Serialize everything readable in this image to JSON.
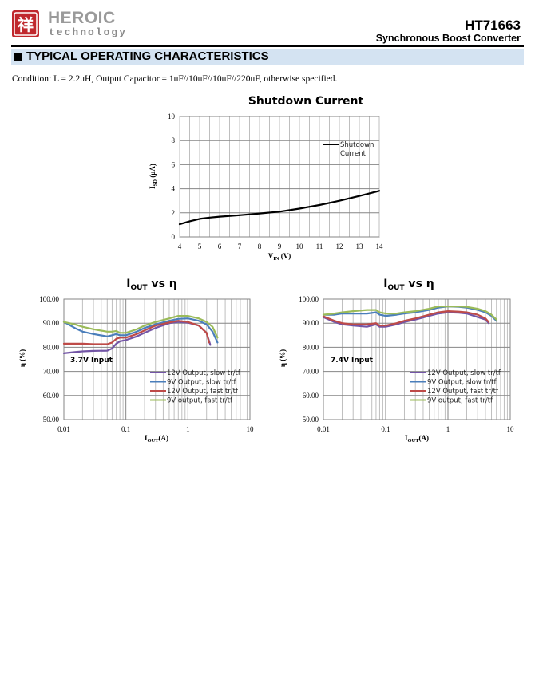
{
  "header": {
    "logo_glyph": "祥",
    "brand_name": "HEROIC",
    "brand_tagline": "technology",
    "part_number": "HT71663",
    "part_description": "Synchronous Boost Converter"
  },
  "section": {
    "title": "TYPICAL OPERATING CHARACTERISTICS"
  },
  "condition": "Condition: L = 2.2uH, Output Capacitor = 1uF//10uF//10uF//220uF, otherwise specified.",
  "colors": {
    "header_band": "#d4e3f2",
    "purple": "#7355a6",
    "blue": "#4a7ebb",
    "red": "#be4b48",
    "green": "#9bbb59"
  },
  "chart_data": [
    {
      "type": "line",
      "title": "Shutdown Current",
      "xlabel_main": "V",
      "xlabel_sub": "IN",
      "xlabel_unit": " (V)",
      "ylabel_main": "I",
      "ylabel_sub": "SD",
      "ylabel_unit": " (μA)",
      "xlim": [
        4,
        14
      ],
      "ylim": [
        0,
        10
      ],
      "xticks": [
        "4",
        "5",
        "6",
        "7",
        "8",
        "9",
        "10",
        "11",
        "12",
        "13",
        "14"
      ],
      "yticks": [
        "0",
        "2",
        "4",
        "6",
        "8",
        "10"
      ],
      "legend_position": "top-right",
      "series": [
        {
          "name": "Shutdown Current",
          "color": "#000000",
          "x": [
            4,
            4.5,
            5,
            5.5,
            6,
            7,
            8,
            9,
            10,
            11,
            12,
            13,
            14
          ],
          "y": [
            1.05,
            1.3,
            1.5,
            1.6,
            1.68,
            1.8,
            1.95,
            2.1,
            2.35,
            2.65,
            3.0,
            3.4,
            3.82
          ]
        }
      ]
    },
    {
      "type": "line",
      "title_main": "I",
      "title_sub": "OUT",
      "title_rest": " vs η",
      "annotation": "3.7V Input",
      "xlabel_main": "I",
      "xlabel_sub": "OUT",
      "xlabel_unit": "(A)",
      "ylabel": "η (%)",
      "xscale": "log",
      "xlim": [
        0.01,
        10
      ],
      "ylim": [
        50,
        100
      ],
      "xticks": [
        "0.01",
        "0.1",
        "1",
        "10"
      ],
      "yticks": [
        "50.00",
        "60.00",
        "70.00",
        "80.00",
        "90.00",
        "100.00"
      ],
      "legend_position": "bottom-right",
      "series": [
        {
          "name": "12V Output, slow tr/tf",
          "color": "#7355a6",
          "x": [
            0.01,
            0.015,
            0.02,
            0.03,
            0.05,
            0.06,
            0.07,
            0.08,
            0.1,
            0.15,
            0.2,
            0.3,
            0.5,
            0.7,
            1,
            1.5,
            2,
            2.3
          ],
          "y": [
            77.5,
            78.0,
            78.3,
            78.5,
            78.6,
            79.5,
            81.5,
            82.5,
            83.0,
            84.5,
            86.0,
            88.0,
            90.0,
            90.5,
            90.2,
            89.0,
            86.0,
            81.0
          ]
        },
        {
          "name": "9V Output, slow tr/tf",
          "color": "#4a7ebb",
          "x": [
            0.01,
            0.015,
            0.02,
            0.03,
            0.05,
            0.06,
            0.07,
            0.08,
            0.1,
            0.15,
            0.2,
            0.3,
            0.5,
            0.7,
            1,
            1.5,
            2,
            2.5,
            3
          ],
          "y": [
            90.5,
            88.0,
            86.5,
            85.5,
            84.5,
            85.0,
            85.5,
            85.0,
            85.0,
            86.5,
            88.0,
            89.5,
            91.0,
            91.8,
            92.0,
            91.0,
            89.5,
            86.5,
            82.0
          ]
        },
        {
          "name": "12V Output, fast tr/tf",
          "color": "#be4b48",
          "x": [
            0.01,
            0.015,
            0.02,
            0.03,
            0.05,
            0.06,
            0.07,
            0.08,
            0.1,
            0.15,
            0.2,
            0.3,
            0.5,
            0.7,
            1,
            1.5,
            2,
            2.2
          ],
          "y": [
            81.5,
            81.5,
            81.5,
            81.3,
            81.3,
            82.0,
            83.5,
            84.0,
            84.0,
            85.5,
            87.0,
            89.0,
            90.3,
            91.0,
            90.5,
            89.0,
            86.0,
            82.0
          ]
        },
        {
          "name": "9V output, fast tr/tf",
          "color": "#9bbb59",
          "x": [
            0.01,
            0.015,
            0.02,
            0.03,
            0.05,
            0.06,
            0.07,
            0.08,
            0.1,
            0.15,
            0.2,
            0.3,
            0.5,
            0.7,
            1,
            1.5,
            2,
            2.5,
            3
          ],
          "y": [
            90.5,
            89.5,
            88.5,
            87.5,
            86.5,
            86.5,
            86.8,
            86.0,
            86.0,
            87.5,
            89.0,
            90.5,
            92.0,
            93.0,
            93.0,
            92.0,
            90.5,
            88.5,
            84.0
          ]
        }
      ]
    },
    {
      "type": "line",
      "title_main": "I",
      "title_sub": "OUT",
      "title_rest": " vs η",
      "annotation": "7.4V Input",
      "xlabel_main": "I",
      "xlabel_sub": "OUT",
      "xlabel_unit": "(A)",
      "ylabel": "η (%)",
      "xscale": "log",
      "xlim": [
        0.01,
        10
      ],
      "ylim": [
        50,
        100
      ],
      "xticks": [
        "0.01",
        "0.1",
        "1",
        "10"
      ],
      "yticks": [
        "50.00",
        "60.00",
        "70.00",
        "80.00",
        "90.00",
        "100.00"
      ],
      "legend_position": "bottom-right",
      "series": [
        {
          "name": "12V Output, slow tr/tf",
          "color": "#7355a6",
          "x": [
            0.01,
            0.015,
            0.02,
            0.03,
            0.05,
            0.07,
            0.08,
            0.1,
            0.15,
            0.2,
            0.3,
            0.5,
            0.7,
            1,
            1.5,
            2,
            3,
            4,
            4.5
          ],
          "y": [
            92.5,
            90.5,
            89.5,
            89.0,
            88.5,
            89.5,
            88.5,
            88.5,
            89.5,
            90.5,
            91.5,
            93.0,
            94.0,
            94.5,
            94.3,
            94.0,
            92.5,
            91.5,
            90.0
          ]
        },
        {
          "name": "9V Output, slow tr/tf",
          "color": "#4a7ebb",
          "x": [
            0.01,
            0.015,
            0.02,
            0.03,
            0.05,
            0.07,
            0.08,
            0.1,
            0.15,
            0.2,
            0.3,
            0.5,
            0.7,
            1,
            1.5,
            2,
            3,
            4,
            5,
            6
          ],
          "y": [
            93.5,
            93.5,
            94.0,
            94.0,
            94.0,
            94.5,
            93.5,
            93.0,
            93.5,
            94.0,
            94.5,
            95.5,
            96.5,
            97.0,
            96.8,
            96.5,
            95.5,
            94.5,
            93.0,
            91.0
          ]
        },
        {
          "name": "12V Output, fast tr/tf",
          "color": "#be4b48",
          "x": [
            0.01,
            0.015,
            0.02,
            0.03,
            0.05,
            0.07,
            0.08,
            0.1,
            0.15,
            0.2,
            0.3,
            0.5,
            0.7,
            1,
            1.5,
            2,
            3,
            4,
            4.5
          ],
          "y": [
            92.8,
            91.0,
            90.0,
            89.5,
            89.5,
            90.0,
            89.0,
            89.0,
            90.0,
            91.0,
            92.0,
            93.5,
            94.5,
            95.0,
            94.8,
            94.5,
            93.5,
            92.0,
            90.5
          ]
        },
        {
          "name": "9V output, fast tr/tf",
          "color": "#9bbb59",
          "x": [
            0.01,
            0.015,
            0.02,
            0.03,
            0.05,
            0.07,
            0.08,
            0.1,
            0.15,
            0.2,
            0.3,
            0.5,
            0.7,
            1,
            1.5,
            2,
            3,
            4,
            5,
            6
          ],
          "y": [
            93.5,
            94.0,
            94.5,
            95.0,
            95.5,
            95.5,
            94.5,
            94.0,
            94.0,
            94.5,
            95.0,
            96.0,
            97.0,
            97.0,
            97.0,
            96.8,
            96.0,
            95.0,
            93.5,
            91.5
          ]
        }
      ]
    }
  ]
}
